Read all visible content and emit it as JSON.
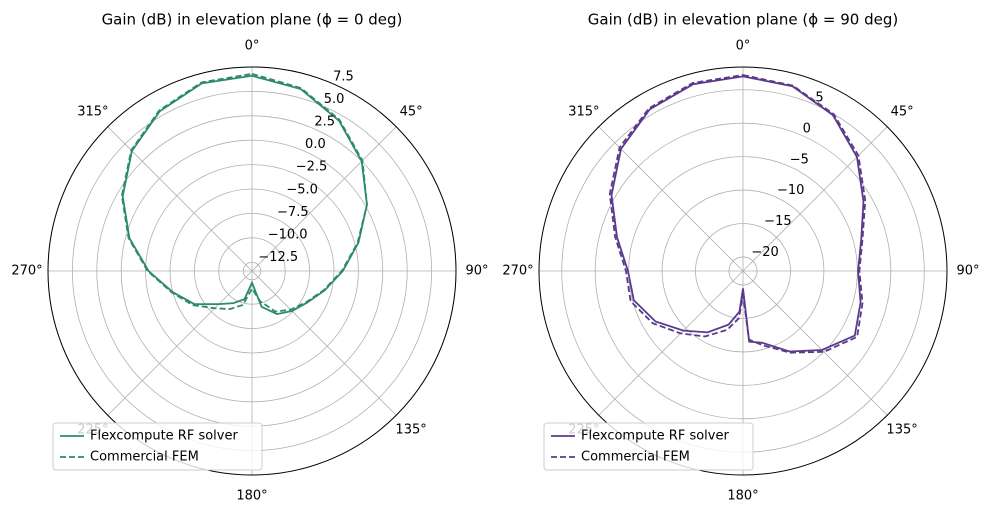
{
  "chart_data": [
    {
      "type": "polar",
      "title": "Gain (dB) in elevation plane (ϕ = 0 deg)",
      "theta": [
        0,
        15,
        30,
        45,
        60,
        75,
        90,
        105,
        120,
        135,
        150,
        165,
        180,
        195,
        210,
        225,
        240,
        255,
        270,
        285,
        300,
        315,
        330,
        345
      ],
      "series": [
        {
          "name": "Flexcompute RF solver",
          "color": "#2e8b68",
          "linestyle": "solid",
          "values": [
            6.6,
            5.9,
            4.4,
            2.5,
            0.2,
            -2.1,
            -4.1,
            -5.7,
            -6.9,
            -7.6,
            -8.3,
            -9.6,
            -12.2,
            -10.4,
            -9.6,
            -8.6,
            -6.6,
            -5.0,
            -2.8,
            -0.4,
            1.9,
            4.0,
            5.5,
            6.5
          ]
        },
        {
          "name": "Commercial FEM",
          "color": "#2e8b68",
          "linestyle": "dashed",
          "values": [
            6.8,
            6.0,
            4.5,
            2.6,
            0.2,
            -2.2,
            -4.2,
            -5.8,
            -7.0,
            -7.8,
            -8.6,
            -10.2,
            -11.6,
            -9.8,
            -8.9,
            -8.0,
            -6.4,
            -4.9,
            -2.7,
            -0.3,
            2.0,
            4.1,
            5.6,
            6.6
          ]
        }
      ],
      "rlim": [
        -13.4,
        7.5
      ],
      "rticks": [
        {
          "value": -12.5,
          "label": "−12.5"
        },
        {
          "value": -10,
          "label": "−10.0"
        },
        {
          "value": -7.5,
          "label": "−7.5"
        },
        {
          "value": -5,
          "label": "−5.0"
        },
        {
          "value": -2.5,
          "label": "−2.5"
        },
        {
          "value": 0,
          "label": "0.0"
        },
        2.5,
        {
          "value": 5,
          "label": "5.0"
        },
        7.5
      ],
      "thetaticks": [
        {
          "value": 0,
          "label": "0°"
        },
        {
          "value": 45,
          "label": "45°"
        },
        {
          "value": 90,
          "label": "90°"
        },
        {
          "value": 135,
          "label": "135°"
        },
        {
          "value": 180,
          "label": "180°"
        },
        {
          "value": 225,
          "label": "225°"
        },
        {
          "value": 270,
          "label": "270°"
        },
        {
          "value": 315,
          "label": "315°"
        }
      ],
      "grid": true,
      "legend": "lower left"
    },
    {
      "type": "polar",
      "title": "Gain (dB) in elevation plane (ϕ = 90 deg)",
      "theta": [
        0,
        15,
        30,
        45,
        60,
        75,
        90,
        105,
        120,
        135,
        150,
        165,
        175,
        180,
        185,
        195,
        210,
        225,
        240,
        255,
        270,
        285,
        300,
        315,
        330,
        345
      ],
      "series": [
        {
          "name": "Flexcompute RF solver",
          "color": "#5b3a8c",
          "linestyle": "solid",
          "values": [
            7.0,
            6.5,
            4.8,
            2.0,
            -1.3,
            -3.8,
            -4.9,
            -3.9,
            -2.8,
            -5.4,
            -8.2,
            -11.0,
            -11.5,
            -19.5,
            -16.0,
            -13.8,
            -11.5,
            -9.5,
            -7.0,
            -5.2,
            -4.9,
            -2.6,
            0.6,
            3.7,
            5.8,
            6.8
          ]
        },
        {
          "name": "Commercial FEM",
          "color": "#5b3a8c",
          "linestyle": "dashed",
          "values": [
            7.2,
            6.6,
            5.0,
            2.3,
            -1.0,
            -3.6,
            -4.7,
            -3.6,
            -2.4,
            -5.0,
            -8.0,
            -10.6,
            -11.8,
            -18.5,
            -15.0,
            -13.0,
            -10.8,
            -8.9,
            -6.5,
            -4.7,
            -4.6,
            -2.3,
            0.9,
            4.0,
            6.0,
            7.0
          ]
        }
      ],
      "rlim": [
        -22.1,
        8.4
      ],
      "rticks": [
        {
          "value": -20,
          "label": "−20"
        },
        {
          "value": -15,
          "label": "−15"
        },
        {
          "value": -10,
          "label": "−10"
        },
        {
          "value": -5,
          "label": "−5"
        },
        0,
        5
      ],
      "thetaticks": [
        {
          "value": 0,
          "label": "0°"
        },
        {
          "value": 45,
          "label": "45°"
        },
        {
          "value": 90,
          "label": "90°"
        },
        {
          "value": 135,
          "label": "135°"
        },
        {
          "value": 180,
          "label": "180°"
        },
        {
          "value": 225,
          "label": "225°"
        },
        {
          "value": 270,
          "label": "270°"
        },
        {
          "value": 315,
          "label": "315°"
        }
      ],
      "grid": true,
      "legend": "lower left"
    }
  ]
}
